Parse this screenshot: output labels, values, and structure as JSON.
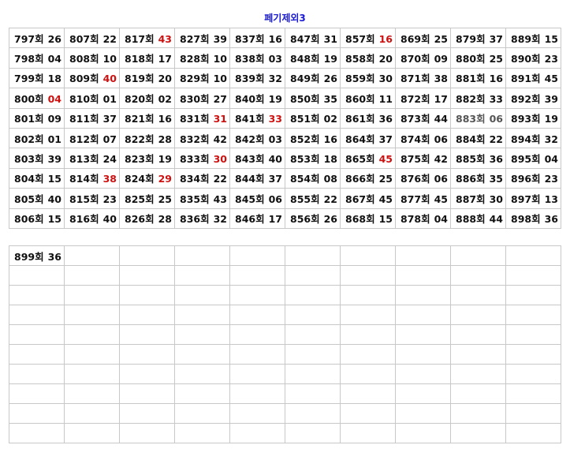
{
  "title": "페기제외3",
  "colors": {
    "highlight": "#cc1111",
    "muted": "#555555",
    "normal": "#111111",
    "title": "#1a1ad0"
  },
  "suffix": "회",
  "table1": [
    [
      [
        "797",
        "26"
      ],
      [
        "807",
        "22"
      ],
      [
        "817",
        "43",
        "highlight"
      ],
      [
        "827",
        "39"
      ],
      [
        "837",
        "16"
      ],
      [
        "847",
        "31"
      ],
      [
        "857",
        "16",
        "highlight"
      ],
      [
        "869",
        "25"
      ],
      [
        "879",
        "37"
      ],
      [
        "889",
        "15"
      ]
    ],
    [
      [
        "798",
        "04"
      ],
      [
        "808",
        "10"
      ],
      [
        "818",
        "17"
      ],
      [
        "828",
        "10"
      ],
      [
        "838",
        "03"
      ],
      [
        "848",
        "19"
      ],
      [
        "858",
        "20"
      ],
      [
        "870",
        "09"
      ],
      [
        "880",
        "25"
      ],
      [
        "890",
        "23"
      ]
    ],
    [
      [
        "799",
        "18"
      ],
      [
        "809",
        "40",
        "highlight"
      ],
      [
        "819",
        "20"
      ],
      [
        "829",
        "10"
      ],
      [
        "839",
        "32"
      ],
      [
        "849",
        "26"
      ],
      [
        "859",
        "30"
      ],
      [
        "871",
        "38"
      ],
      [
        "881",
        "16"
      ],
      [
        "891",
        "45"
      ]
    ],
    [
      [
        "800",
        "04",
        "highlight"
      ],
      [
        "810",
        "01"
      ],
      [
        "820",
        "02"
      ],
      [
        "830",
        "27"
      ],
      [
        "840",
        "19"
      ],
      [
        "850",
        "35"
      ],
      [
        "860",
        "11"
      ],
      [
        "872",
        "17"
      ],
      [
        "882",
        "33"
      ],
      [
        "892",
        "39"
      ]
    ],
    [
      [
        "801",
        "09"
      ],
      [
        "811",
        "37"
      ],
      [
        "821",
        "16"
      ],
      [
        "831",
        "31",
        "highlight"
      ],
      [
        "841",
        "33",
        "highlight"
      ],
      [
        "851",
        "02"
      ],
      [
        "861",
        "36"
      ],
      [
        "873",
        "44"
      ],
      [
        "883",
        "06",
        "muted"
      ],
      [
        "893",
        "19"
      ]
    ],
    [
      [
        "802",
        "01"
      ],
      [
        "812",
        "07"
      ],
      [
        "822",
        "28"
      ],
      [
        "832",
        "42"
      ],
      [
        "842",
        "03"
      ],
      [
        "852",
        "16"
      ],
      [
        "864",
        "37"
      ],
      [
        "874",
        "06"
      ],
      [
        "884",
        "22"
      ],
      [
        "894",
        "32"
      ]
    ],
    [
      [
        "803",
        "39"
      ],
      [
        "813",
        "24"
      ],
      [
        "823",
        "19"
      ],
      [
        "833",
        "30",
        "highlight"
      ],
      [
        "843",
        "40"
      ],
      [
        "853",
        "18"
      ],
      [
        "865",
        "45",
        "highlight"
      ],
      [
        "875",
        "42"
      ],
      [
        "885",
        "36"
      ],
      [
        "895",
        "04"
      ]
    ],
    [
      [
        "804",
        "15"
      ],
      [
        "814",
        "38",
        "highlight"
      ],
      [
        "824",
        "29",
        "highlight"
      ],
      [
        "834",
        "22"
      ],
      [
        "844",
        "37"
      ],
      [
        "854",
        "08"
      ],
      [
        "866",
        "25"
      ],
      [
        "876",
        "06"
      ],
      [
        "886",
        "35"
      ],
      [
        "896",
        "23"
      ]
    ],
    [
      [
        "805",
        "40"
      ],
      [
        "815",
        "23"
      ],
      [
        "825",
        "25"
      ],
      [
        "835",
        "43"
      ],
      [
        "845",
        "06"
      ],
      [
        "855",
        "22"
      ],
      [
        "867",
        "45"
      ],
      [
        "877",
        "45"
      ],
      [
        "887",
        "30"
      ],
      [
        "897",
        "13"
      ]
    ],
    [
      [
        "806",
        "15"
      ],
      [
        "816",
        "40"
      ],
      [
        "826",
        "28"
      ],
      [
        "836",
        "32"
      ],
      [
        "846",
        "17"
      ],
      [
        "856",
        "26"
      ],
      [
        "868",
        "15"
      ],
      [
        "878",
        "04"
      ],
      [
        "888",
        "44"
      ],
      [
        "898",
        "36"
      ]
    ]
  ],
  "table2": [
    [
      [
        "899",
        "36"
      ]
    ]
  ]
}
